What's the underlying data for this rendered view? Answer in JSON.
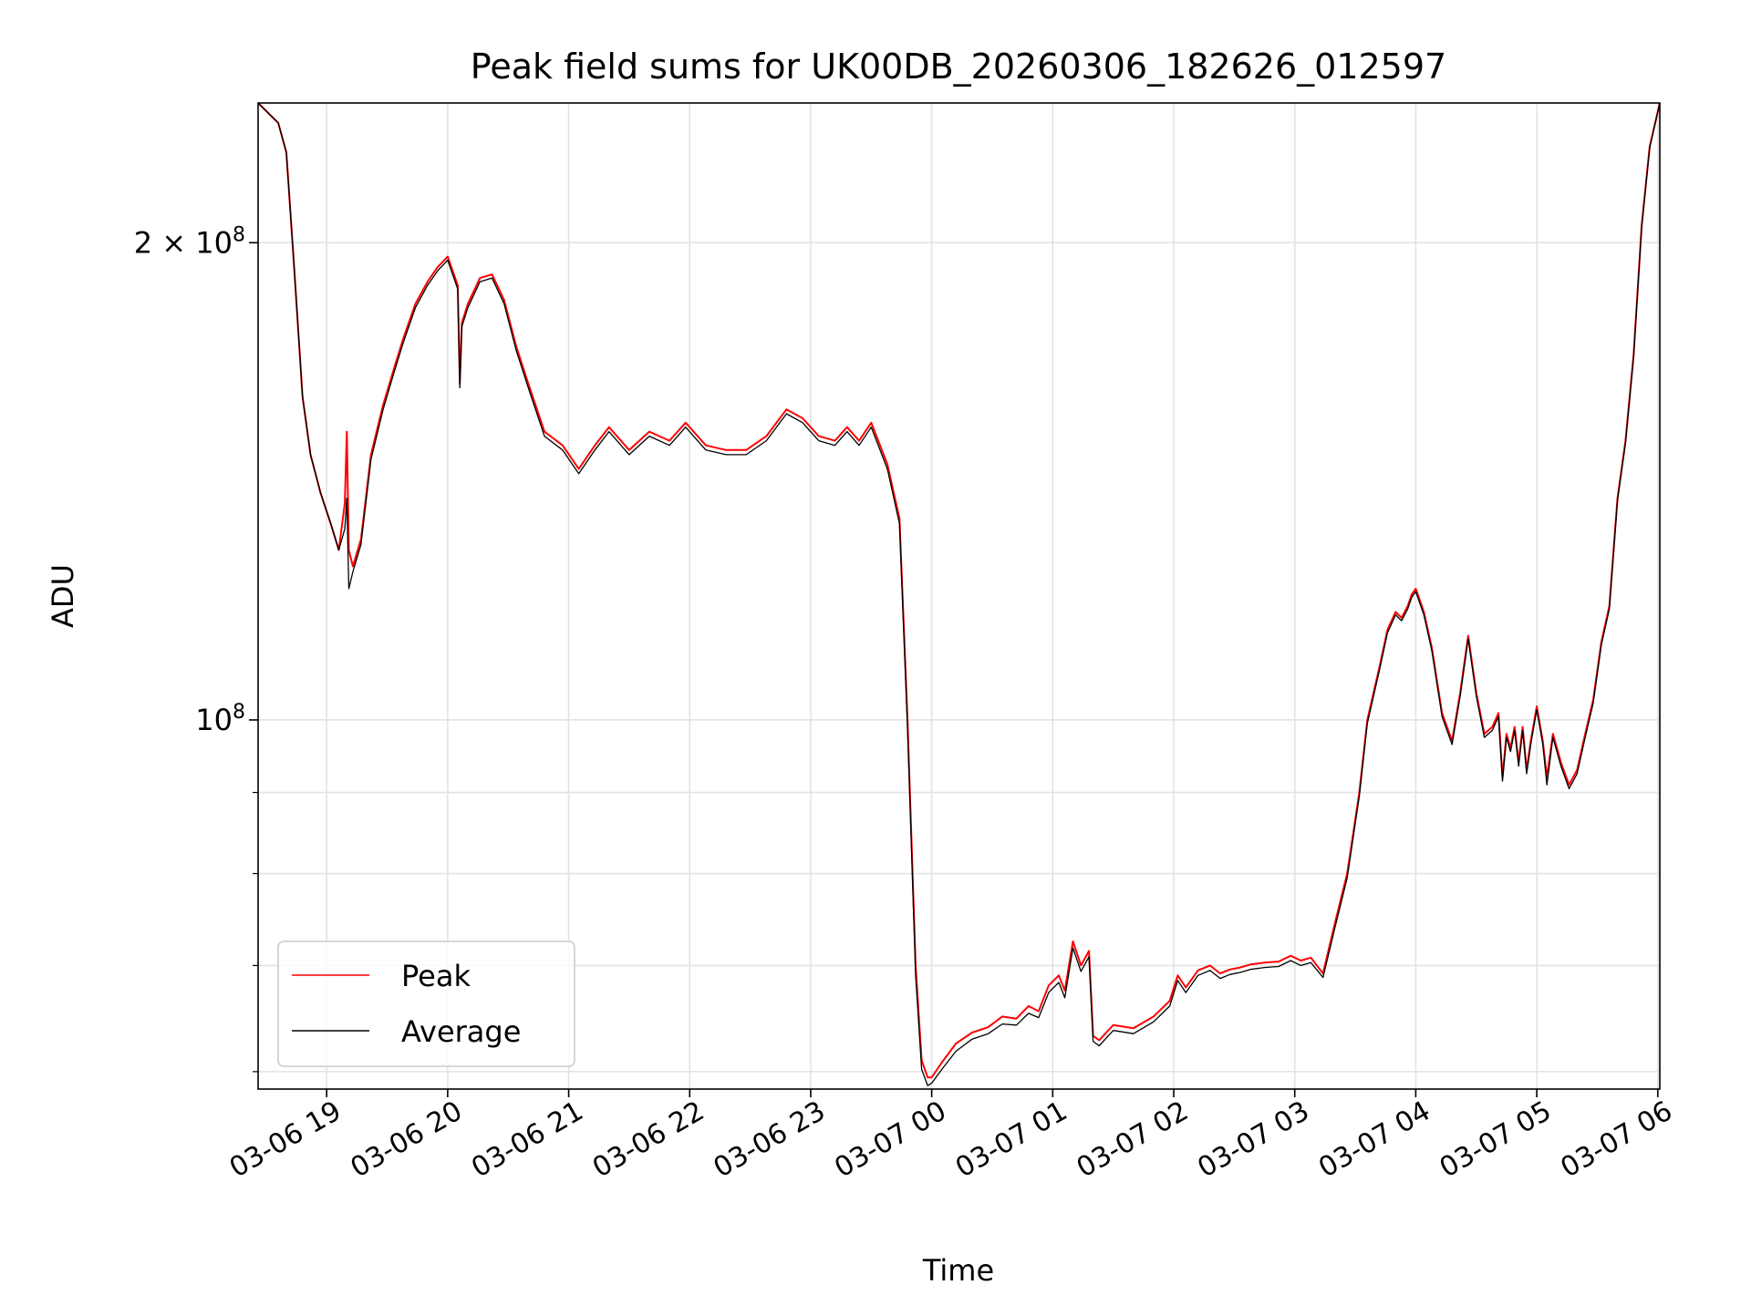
{
  "chart_data": {
    "type": "line",
    "title": "Peak field sums for UK00DB_20260306_182626_012597",
    "xlabel": "Time",
    "ylabel": "ADU",
    "y_scale": "log",
    "ylim": [
      58500000,
      245000000
    ],
    "xlim": [
      "2026-03-06 18:26",
      "2026-03-07 06:01"
    ],
    "x_tick_labels": [
      "03-06 19",
      "03-06 20",
      "03-06 21",
      "03-06 22",
      "03-06 23",
      "03-07 00",
      "03-07 01",
      "03-07 02",
      "03-07 03",
      "03-07 04",
      "03-07 05",
      "03-07 06"
    ],
    "x_tick_values": [
      "2026-03-06 19:00",
      "2026-03-06 20:00",
      "2026-03-06 21:00",
      "2026-03-06 22:00",
      "2026-03-06 23:00",
      "2026-03-07 00:00",
      "2026-03-07 01:00",
      "2026-03-07 02:00",
      "2026-03-07 03:00",
      "2026-03-07 04:00",
      "2026-03-07 05:00",
      "2026-03-07 06:00"
    ],
    "y_major_ticks": [
      {
        "value": 200000000,
        "base": "2 × 10",
        "exp": "8"
      },
      {
        "value": 100000000,
        "base": "10",
        "exp": "8"
      }
    ],
    "y_minor_ticks": [
      60000000,
      70000000,
      80000000,
      90000000
    ],
    "grid": true,
    "legend_placement": "lower-left",
    "series": [
      {
        "name": "Peak",
        "color": "#ff0000",
        "x": [
          "2026-03-06 18:26",
          "2026-03-06 18:36",
          "2026-03-06 18:40",
          "2026-03-06 18:44",
          "2026-03-06 18:48",
          "2026-03-06 18:52",
          "2026-03-06 18:57",
          "2026-03-06 19:02",
          "2026-03-06 19:06",
          "2026-03-06 19:09",
          "2026-03-06 19:10",
          "2026-03-06 19:11",
          "2026-03-06 19:13",
          "2026-03-06 19:17",
          "2026-03-06 19:22",
          "2026-03-06 19:28",
          "2026-03-06 19:33",
          "2026-03-06 19:38",
          "2026-03-06 19:44",
          "2026-03-06 19:50",
          "2026-03-06 19:55",
          "2026-03-06 20:00",
          "2026-03-06 20:05",
          "2026-03-06 20:06",
          "2026-03-06 20:07",
          "2026-03-06 20:10",
          "2026-03-06 20:16",
          "2026-03-06 20:22",
          "2026-03-06 20:28",
          "2026-03-06 20:34",
          "2026-03-06 20:40",
          "2026-03-06 20:48",
          "2026-03-06 20:57",
          "2026-03-06 21:05",
          "2026-03-06 21:13",
          "2026-03-06 21:20",
          "2026-03-06 21:30",
          "2026-03-06 21:40",
          "2026-03-06 21:50",
          "2026-03-06 21:58",
          "2026-03-06 22:08",
          "2026-03-06 22:18",
          "2026-03-06 22:28",
          "2026-03-06 22:38",
          "2026-03-06 22:48",
          "2026-03-06 22:56",
          "2026-03-06 23:04",
          "2026-03-06 23:12",
          "2026-03-06 23:18",
          "2026-03-06 23:24",
          "2026-03-06 23:30",
          "2026-03-06 23:38",
          "2026-03-06 23:44",
          "2026-03-06 23:48",
          "2026-03-06 23:52",
          "2026-03-06 23:55",
          "2026-03-06 23:58",
          "2026-03-07 00:00",
          "2026-03-07 00:05",
          "2026-03-07 00:12",
          "2026-03-07 00:20",
          "2026-03-07 00:28",
          "2026-03-07 00:35",
          "2026-03-07 00:42",
          "2026-03-07 00:48",
          "2026-03-07 00:53",
          "2026-03-07 00:58",
          "2026-03-07 01:03",
          "2026-03-07 01:06",
          "2026-03-07 01:10",
          "2026-03-07 01:14",
          "2026-03-07 01:18",
          "2026-03-07 01:20",
          "2026-03-07 01:23",
          "2026-03-07 01:30",
          "2026-03-07 01:40",
          "2026-03-07 01:50",
          "2026-03-07 01:58",
          "2026-03-07 02:02",
          "2026-03-07 02:06",
          "2026-03-07 02:12",
          "2026-03-07 02:18",
          "2026-03-07 02:23",
          "2026-03-07 02:28",
          "2026-03-07 02:33",
          "2026-03-07 02:38",
          "2026-03-07 02:45",
          "2026-03-07 02:52",
          "2026-03-07 02:58",
          "2026-03-07 03:03",
          "2026-03-07 03:08",
          "2026-03-07 03:14",
          "2026-03-07 03:20",
          "2026-03-07 03:26",
          "2026-03-07 03:32",
          "2026-03-07 03:36",
          "2026-03-07 03:42",
          "2026-03-07 03:46",
          "2026-03-07 03:50",
          "2026-03-07 03:53",
          "2026-03-07 03:56",
          "2026-03-07 03:58",
          "2026-03-07 04:00",
          "2026-03-07 04:04",
          "2026-03-07 04:08",
          "2026-03-07 04:13",
          "2026-03-07 04:18",
          "2026-03-07 04:22",
          "2026-03-07 04:26",
          "2026-03-07 04:30",
          "2026-03-07 04:34",
          "2026-03-07 04:38",
          "2026-03-07 04:41",
          "2026-03-07 04:43",
          "2026-03-07 04:45",
          "2026-03-07 04:47",
          "2026-03-07 04:49",
          "2026-03-07 04:51",
          "2026-03-07 04:53",
          "2026-03-07 04:55",
          "2026-03-07 04:57",
          "2026-03-07 05:00",
          "2026-03-07 05:03",
          "2026-03-07 05:05",
          "2026-03-07 05:08",
          "2026-03-07 05:12",
          "2026-03-07 05:16",
          "2026-03-07 05:20",
          "2026-03-07 05:24",
          "2026-03-07 05:28",
          "2026-03-07 05:32",
          "2026-03-07 05:36",
          "2026-03-07 05:40",
          "2026-03-07 05:44",
          "2026-03-07 05:48",
          "2026-03-07 05:52",
          "2026-03-07 05:56",
          "2026-03-07 06:01"
        ],
        "y": [
          245000000,
          238000000,
          228000000,
          192000000,
          160000000,
          147000000,
          139000000,
          133000000,
          128000000,
          137000000,
          152000000,
          128000000,
          125000000,
          130000000,
          147000000,
          158000000,
          166000000,
          174000000,
          183000000,
          189000000,
          193000000,
          196000000,
          188000000,
          163000000,
          178000000,
          183000000,
          190000000,
          191000000,
          184000000,
          172000000,
          163000000,
          152000000,
          149000000,
          144000000,
          149000000,
          153000000,
          148000000,
          152000000,
          150000000,
          154000000,
          149000000,
          148000000,
          148000000,
          151000000,
          157000000,
          155000000,
          151000000,
          150000000,
          153000000,
          150000000,
          154000000,
          145000000,
          134000000,
          100000000,
          70000000,
          61000000,
          59500000,
          59500000,
          60800000,
          62500000,
          63500000,
          64000000,
          65000000,
          64800000,
          66000000,
          65500000,
          68000000,
          69000000,
          67500000,
          72500000,
          70000000,
          71500000,
          63200000,
          62800000,
          64200000,
          63900000,
          65000000,
          66500000,
          69000000,
          67800000,
          69500000,
          70000000,
          69200000,
          69600000,
          69800000,
          70100000,
          70300000,
          70400000,
          71000000,
          70500000,
          70800000,
          69200000,
          74500000,
          80000000,
          90000000,
          100000000,
          108000000,
          114000000,
          117000000,
          116000000,
          118000000,
          120000000,
          121000000,
          117000000,
          111000000,
          101000000,
          97000000,
          104000000,
          113000000,
          104000000,
          98000000,
          99000000,
          101000000,
          92000000,
          98000000,
          96000000,
          99000000,
          94000000,
          99000000,
          93000000,
          97000000,
          102000000,
          97000000,
          92000000,
          98000000,
          94000000,
          91000000,
          93000000,
          98000000,
          103000000,
          112000000,
          118000000,
          138000000,
          150000000,
          170000000,
          205000000,
          230000000,
          245000000
        ]
      },
      {
        "name": "Average",
        "color": "#000000",
        "x": [
          "2026-03-06 18:26",
          "2026-03-06 18:36",
          "2026-03-06 18:40",
          "2026-03-06 18:44",
          "2026-03-06 18:48",
          "2026-03-06 18:52",
          "2026-03-06 18:57",
          "2026-03-06 19:02",
          "2026-03-06 19:06",
          "2026-03-06 19:09",
          "2026-03-06 19:10",
          "2026-03-06 19:11",
          "2026-03-06 19:13",
          "2026-03-06 19:17",
          "2026-03-06 19:22",
          "2026-03-06 19:28",
          "2026-03-06 19:33",
          "2026-03-06 19:38",
          "2026-03-06 19:44",
          "2026-03-06 19:50",
          "2026-03-06 19:55",
          "2026-03-06 20:00",
          "2026-03-06 20:05",
          "2026-03-06 20:06",
          "2026-03-06 20:07",
          "2026-03-06 20:10",
          "2026-03-06 20:16",
          "2026-03-06 20:22",
          "2026-03-06 20:28",
          "2026-03-06 20:34",
          "2026-03-06 20:40",
          "2026-03-06 20:48",
          "2026-03-06 20:57",
          "2026-03-06 21:05",
          "2026-03-06 21:13",
          "2026-03-06 21:20",
          "2026-03-06 21:30",
          "2026-03-06 21:40",
          "2026-03-06 21:50",
          "2026-03-06 21:58",
          "2026-03-06 22:08",
          "2026-03-06 22:18",
          "2026-03-06 22:28",
          "2026-03-06 22:38",
          "2026-03-06 22:48",
          "2026-03-06 22:56",
          "2026-03-06 23:04",
          "2026-03-06 23:12",
          "2026-03-06 23:18",
          "2026-03-06 23:24",
          "2026-03-06 23:30",
          "2026-03-06 23:38",
          "2026-03-06 23:44",
          "2026-03-06 23:48",
          "2026-03-06 23:52",
          "2026-03-06 23:55",
          "2026-03-06 23:58",
          "2026-03-07 00:00",
          "2026-03-07 00:05",
          "2026-03-07 00:12",
          "2026-03-07 00:20",
          "2026-03-07 00:28",
          "2026-03-07 00:35",
          "2026-03-07 00:42",
          "2026-03-07 00:48",
          "2026-03-07 00:53",
          "2026-03-07 00:58",
          "2026-03-07 01:03",
          "2026-03-07 01:06",
          "2026-03-07 01:10",
          "2026-03-07 01:14",
          "2026-03-07 01:18",
          "2026-03-07 01:20",
          "2026-03-07 01:23",
          "2026-03-07 01:30",
          "2026-03-07 01:40",
          "2026-03-07 01:50",
          "2026-03-07 01:58",
          "2026-03-07 02:02",
          "2026-03-07 02:06",
          "2026-03-07 02:12",
          "2026-03-07 02:18",
          "2026-03-07 02:23",
          "2026-03-07 02:28",
          "2026-03-07 02:33",
          "2026-03-07 02:38",
          "2026-03-07 02:45",
          "2026-03-07 02:52",
          "2026-03-07 02:58",
          "2026-03-07 03:03",
          "2026-03-07 03:08",
          "2026-03-07 03:14",
          "2026-03-07 03:20",
          "2026-03-07 03:26",
          "2026-03-07 03:32",
          "2026-03-07 03:36",
          "2026-03-07 03:42",
          "2026-03-07 03:46",
          "2026-03-07 03:50",
          "2026-03-07 03:53",
          "2026-03-07 03:56",
          "2026-03-07 03:58",
          "2026-03-07 04:00",
          "2026-03-07 04:04",
          "2026-03-07 04:08",
          "2026-03-07 04:13",
          "2026-03-07 04:18",
          "2026-03-07 04:22",
          "2026-03-07 04:26",
          "2026-03-07 04:30",
          "2026-03-07 04:34",
          "2026-03-07 04:38",
          "2026-03-07 04:41",
          "2026-03-07 04:43",
          "2026-03-07 04:45",
          "2026-03-07 04:47",
          "2026-03-07 04:49",
          "2026-03-07 04:51",
          "2026-03-07 04:53",
          "2026-03-07 04:55",
          "2026-03-07 04:57",
          "2026-03-07 05:00",
          "2026-03-07 05:03",
          "2026-03-07 05:05",
          "2026-03-07 05:08",
          "2026-03-07 05:12",
          "2026-03-07 05:16",
          "2026-03-07 05:20",
          "2026-03-07 05:24",
          "2026-03-07 05:28",
          "2026-03-07 05:32",
          "2026-03-07 05:36",
          "2026-03-07 05:40",
          "2026-03-07 05:44",
          "2026-03-07 05:48",
          "2026-03-07 05:52",
          "2026-03-07 05:56",
          "2026-03-07 06:01"
        ],
        "y": [
          245000000,
          238000000,
          228000000,
          192000000,
          160000000,
          147000000,
          139000000,
          133000000,
          128000000,
          132000000,
          138000000,
          121000000,
          124000000,
          129000000,
          146000000,
          157000000,
          165000000,
          173000000,
          182000000,
          188000000,
          192000000,
          195000000,
          187000000,
          162000000,
          177000000,
          182000000,
          189000000,
          190000000,
          183000000,
          171000000,
          162000000,
          151000000,
          148000000,
          143000000,
          148000000,
          152000000,
          147000000,
          151000000,
          149000000,
          153000000,
          148000000,
          147000000,
          147000000,
          150000000,
          156000000,
          154000000,
          150000000,
          149000000,
          152000000,
          149000000,
          153000000,
          144000000,
          133000000,
          99000000,
          69000000,
          60200000,
          58800000,
          59000000,
          60200000,
          61800000,
          62900000,
          63400000,
          64300000,
          64200000,
          65300000,
          64900000,
          67300000,
          68300000,
          66800000,
          71800000,
          69400000,
          70900000,
          62700000,
          62300000,
          63700000,
          63400000,
          64500000,
          66000000,
          68500000,
          67300000,
          69000000,
          69500000,
          68700000,
          69100000,
          69300000,
          69600000,
          69800000,
          69900000,
          70500000,
          70000000,
          70300000,
          68800000,
          74000000,
          79500000,
          89500000,
          99500000,
          107500000,
          113500000,
          116500000,
          115500000,
          117500000,
          119500000,
          120500000,
          116500000,
          110500000,
          100500000,
          96500000,
          103500000,
          112500000,
          103500000,
          97500000,
          98500000,
          100500000,
          91500000,
          97500000,
          95500000,
          98500000,
          93500000,
          98500000,
          92500000,
          96500000,
          101500000,
          96500000,
          91000000,
          97500000,
          93500000,
          90500000,
          92500000,
          97500000,
          102500000,
          111500000,
          117500000,
          137500000,
          149500000,
          169500000,
          204500000,
          229500000,
          245000000
        ]
      }
    ]
  }
}
